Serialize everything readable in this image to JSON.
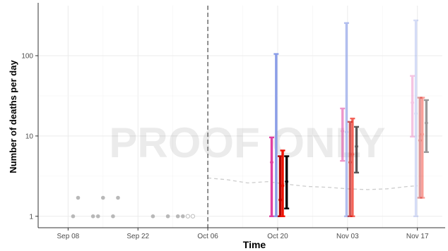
{
  "chart_data": {
    "type": "scatter",
    "title": "",
    "xlabel": "Time",
    "ylabel": "Number of deaths per day",
    "yscale": "log",
    "ylim": [
      0.72,
      420
    ],
    "xlim": [
      "2020-09-02",
      "2020-11-22"
    ],
    "grid": true,
    "legend": "none",
    "watermark": "PROOF ONLY",
    "x_ticks": [
      {
        "date": "2020-09-08",
        "label": "Sep 08"
      },
      {
        "date": "2020-09-22",
        "label": "Sep 22"
      },
      {
        "date": "2020-10-06",
        "label": "Oct 06"
      },
      {
        "date": "2020-10-20",
        "label": "Oct 20"
      },
      {
        "date": "2020-11-03",
        "label": "Nov 03"
      },
      {
        "date": "2020-11-17",
        "label": "Nov 17"
      }
    ],
    "y_ticks": [
      {
        "value": 1,
        "label": "1"
      },
      {
        "value": 10,
        "label": "10"
      },
      {
        "value": 100,
        "label": "100"
      }
    ],
    "forecast_start": "2020-10-06",
    "observed": [
      {
        "date": "2020-09-09",
        "value": 1,
        "hollow": false
      },
      {
        "date": "2020-09-10",
        "value": 1.7,
        "hollow": false
      },
      {
        "date": "2020-09-13",
        "value": 1,
        "hollow": false
      },
      {
        "date": "2020-09-14",
        "value": 1,
        "hollow": false
      },
      {
        "date": "2020-09-15",
        "value": 1.7,
        "hollow": false
      },
      {
        "date": "2020-09-17",
        "value": 1,
        "hollow": false
      },
      {
        "date": "2020-09-18",
        "value": 1.7,
        "hollow": false
      },
      {
        "date": "2020-09-25",
        "value": 1,
        "hollow": false
      },
      {
        "date": "2020-09-28",
        "value": 1,
        "hollow": false
      },
      {
        "date": "2020-09-30",
        "value": 1,
        "hollow": false
      },
      {
        "date": "2020-10-01",
        "value": 1,
        "hollow": false
      },
      {
        "date": "2020-10-02",
        "value": 1,
        "hollow": true
      },
      {
        "date": "2020-10-03",
        "value": 1,
        "hollow": true
      }
    ],
    "trend_line": [
      {
        "date": "2020-10-06",
        "value": 3.0
      },
      {
        "date": "2020-10-10",
        "value": 2.85
      },
      {
        "date": "2020-10-14",
        "value": 2.6
      },
      {
        "date": "2020-10-18",
        "value": 2.7
      },
      {
        "date": "2020-10-22",
        "value": 2.5
      },
      {
        "date": "2020-10-26",
        "value": 2.35
      },
      {
        "date": "2020-10-30",
        "value": 2.3
      },
      {
        "date": "2020-11-03",
        "value": 2.2
      },
      {
        "date": "2020-11-07",
        "value": 2.15
      },
      {
        "date": "2020-11-11",
        "value": 2.2
      },
      {
        "date": "2020-11-15",
        "value": 2.35
      },
      {
        "date": "2020-11-17",
        "value": 2.4
      }
    ],
    "intervals": [
      {
        "date": "2020-10-20",
        "offset": -1.2,
        "low": 1,
        "high": 9.6,
        "median": 4.7,
        "color": "#e040a0",
        "opacity": 1
      },
      {
        "date": "2020-10-20",
        "offset": -0.3,
        "low": 1,
        "high": 105,
        "median": null,
        "color": "#8a9de8",
        "opacity": 1
      },
      {
        "date": "2020-10-20",
        "offset": 0.5,
        "low": 1,
        "high": 5.6,
        "median": 1.6,
        "color": "#b00000",
        "opacity": 1
      },
      {
        "date": "2020-10-20",
        "offset": 1.0,
        "low": 1,
        "high": 6.6,
        "median": 2.4,
        "color": "#ee1100",
        "opacity": 1
      },
      {
        "date": "2020-10-20",
        "offset": 1.8,
        "low": 1.25,
        "high": 5.6,
        "median": 2.7,
        "color": "#000000",
        "opacity": 1
      },
      {
        "date": "2020-11-03",
        "offset": -1.0,
        "low": 4.9,
        "high": 22,
        "median": 11.5,
        "color": "#e040a0",
        "opacity": 0.55
      },
      {
        "date": "2020-11-03",
        "offset": -0.2,
        "low": 1,
        "high": 255,
        "median": 11.2,
        "color": "#8a9de8",
        "opacity": 0.65
      },
      {
        "date": "2020-11-03",
        "offset": 0.5,
        "low": 1,
        "high": 15,
        "median": 4.7,
        "color": "#b00000",
        "opacity": 0.65
      },
      {
        "date": "2020-11-03",
        "offset": 1.0,
        "low": 1,
        "high": 16.5,
        "median": 5.9,
        "color": "#ee1100",
        "opacity": 0.65
      },
      {
        "date": "2020-11-03",
        "offset": 1.8,
        "low": 3.5,
        "high": 13,
        "median": 7.4,
        "color": "#000000",
        "opacity": 0.65
      },
      {
        "date": "2020-11-17",
        "offset": -1.0,
        "low": 9.8,
        "high": 56,
        "median": 26,
        "color": "#e040a0",
        "opacity": 0.3
      },
      {
        "date": "2020-11-17",
        "offset": -0.3,
        "low": 1,
        "high": 275,
        "median": 19,
        "color": "#8a9de8",
        "opacity": 0.35
      },
      {
        "date": "2020-11-17",
        "offset": 0.5,
        "low": 1.7,
        "high": 30,
        "median": 8.8,
        "color": "#b00000",
        "opacity": 0.4
      },
      {
        "date": "2020-11-17",
        "offset": 1.0,
        "low": 1.7,
        "high": 30,
        "median": 10.5,
        "color": "#ee1100",
        "opacity": 0.4
      },
      {
        "date": "2020-11-17",
        "offset": 1.8,
        "low": 6.3,
        "high": 28,
        "median": 14.5,
        "color": "#000000",
        "opacity": 0.4
      }
    ]
  }
}
